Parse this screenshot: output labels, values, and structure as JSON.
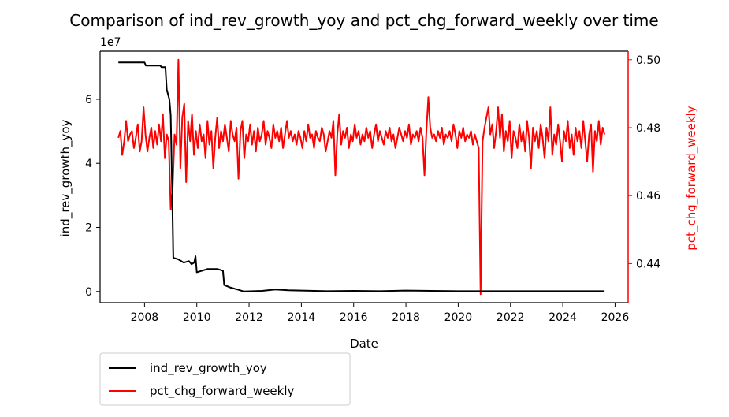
{
  "chart_data": {
    "type": "line",
    "title": "Comparison of ind_rev_growth_yoy and pct_chg_forward_weekly over time",
    "xlabel": "Date",
    "x_ticks": [
      "2008",
      "2010",
      "2012",
      "2014",
      "2016",
      "2018",
      "2020",
      "2022",
      "2024",
      "2026"
    ],
    "xlim": [
      2006.3,
      2026.5
    ],
    "left_axis": {
      "label": "ind_rev_growth_yoy",
      "offset_text": "1e7",
      "ylim": [
        -0.35,
        7.5
      ],
      "ticks": [
        "0",
        "2",
        "4",
        "6"
      ],
      "color": "#000000"
    },
    "right_axis": {
      "label": "pct_chg_forward_weekly",
      "ylim": [
        0.4285,
        0.5025
      ],
      "ticks": [
        "0.44",
        "0.46",
        "0.48",
        "0.50"
      ],
      "color": "#ff0000"
    },
    "series": [
      {
        "name": "ind_rev_growth_yoy",
        "axis": "left",
        "color": "#000000",
        "points": [
          [
            "2007.0",
            7.15
          ],
          [
            "2008.0",
            7.15
          ],
          [
            "2008.05",
            7.05
          ],
          [
            "2008.6",
            7.05
          ],
          [
            "2008.65",
            7.0
          ],
          [
            "2008.8",
            7.0
          ],
          [
            "2008.85",
            6.3
          ],
          [
            "2008.95",
            6.0
          ],
          [
            "2009.0",
            5.5
          ],
          [
            "2009.05",
            3.5
          ],
          [
            "2009.1",
            1.05
          ],
          [
            "2009.3",
            1.0
          ],
          [
            "2009.5",
            0.9
          ],
          [
            "2009.7",
            0.95
          ],
          [
            "2009.8",
            0.85
          ],
          [
            "2009.9",
            0.9
          ],
          [
            "2009.95",
            1.1
          ],
          [
            "2010.0",
            0.6
          ],
          [
            "2010.2",
            0.65
          ],
          [
            "2010.4",
            0.7
          ],
          [
            "2010.8",
            0.7
          ],
          [
            "2011.0",
            0.65
          ],
          [
            "2011.05",
            0.2
          ],
          [
            "2011.3",
            0.12
          ],
          [
            "2011.6",
            0.05
          ],
          [
            "2011.8",
            0.0
          ],
          [
            "2012.5",
            0.02
          ],
          [
            "2013.0",
            0.06
          ],
          [
            "2013.5",
            0.04
          ],
          [
            "2014.0",
            0.03
          ],
          [
            "2015.0",
            0.01
          ],
          [
            "2016.0",
            0.02
          ],
          [
            "2017.0",
            0.01
          ],
          [
            "2018.0",
            0.03
          ],
          [
            "2019.0",
            0.02
          ],
          [
            "2020.0",
            0.01
          ],
          [
            "2022.0",
            0.01
          ],
          [
            "2024.0",
            0.01
          ],
          [
            "2025.6",
            0.01
          ]
        ]
      },
      {
        "name": "pct_chg_forward_weekly",
        "axis": "right",
        "color": "#ff0000",
        "x_start": "2007.0",
        "x_end": "2025.6",
        "values": [
          0.477,
          0.479,
          0.472,
          0.476,
          0.482,
          0.476,
          0.478,
          0.479,
          0.474,
          0.477,
          0.481,
          0.473,
          0.476,
          0.486,
          0.478,
          0.473,
          0.477,
          0.48,
          0.474,
          0.479,
          0.475,
          0.481,
          0.476,
          0.484,
          0.471,
          0.478,
          0.476,
          0.456,
          0.462,
          0.478,
          0.475,
          0.5,
          0.468,
          0.483,
          0.487,
          0.464,
          0.482,
          0.476,
          0.484,
          0.472,
          0.479,
          0.474,
          0.481,
          0.476,
          0.478,
          0.471,
          0.482,
          0.475,
          0.479,
          0.468,
          0.477,
          0.483,
          0.474,
          0.479,
          0.476,
          0.481,
          0.477,
          0.473,
          0.482,
          0.478,
          0.476,
          0.48,
          0.465,
          0.479,
          0.482,
          0.471,
          0.478,
          0.476,
          0.481,
          0.475,
          0.479,
          0.473,
          0.48,
          0.476,
          0.478,
          0.482,
          0.475,
          0.479,
          0.477,
          0.474,
          0.481,
          0.477,
          0.479,
          0.476,
          0.48,
          0.474,
          0.478,
          0.482,
          0.477,
          0.479,
          0.476,
          0.478,
          0.475,
          0.479,
          0.477,
          0.474,
          0.479,
          0.476,
          0.481,
          0.477,
          0.478,
          0.474,
          0.479,
          0.477,
          0.476,
          0.48,
          0.478,
          0.473,
          0.476,
          0.479,
          0.477,
          0.482,
          0.466,
          0.478,
          0.484,
          0.475,
          0.479,
          0.477,
          0.48,
          0.474,
          0.478,
          0.476,
          0.481,
          0.477,
          0.479,
          0.475,
          0.478,
          0.476,
          0.48,
          0.477,
          0.479,
          0.474,
          0.478,
          0.481,
          0.476,
          0.479,
          0.477,
          0.475,
          0.479,
          0.477,
          0.48,
          0.476,
          0.478,
          0.474,
          0.477,
          0.48,
          0.478,
          0.476,
          0.479,
          0.477,
          0.481,
          0.475,
          0.478,
          0.477,
          0.479,
          0.476,
          0.48,
          0.477,
          0.466,
          0.479,
          0.489,
          0.48,
          0.477,
          0.478,
          0.476,
          0.479,
          0.477,
          0.48,
          0.475,
          0.478,
          0.477,
          0.479,
          0.476,
          0.481,
          0.478,
          0.474,
          0.479,
          0.477,
          0.48,
          0.476,
          0.478,
          0.477,
          0.479,
          0.475,
          0.478,
          0.476,
          0.474,
          0.431,
          0.476,
          0.48,
          0.483,
          0.486,
          0.478,
          0.481,
          0.474,
          0.479,
          0.486,
          0.477,
          0.484,
          0.473,
          0.479,
          0.476,
          0.482,
          0.471,
          0.479,
          0.477,
          0.474,
          0.481,
          0.476,
          0.479,
          0.473,
          0.482,
          0.477,
          0.468,
          0.48,
          0.476,
          0.479,
          0.474,
          0.481,
          0.477,
          0.471,
          0.48,
          0.476,
          0.486,
          0.472,
          0.478,
          0.475,
          0.481,
          0.476,
          0.47,
          0.479,
          0.476,
          0.482,
          0.474,
          0.478,
          0.472,
          0.48,
          0.476,
          0.479,
          0.474,
          0.482,
          0.476,
          0.47,
          0.478,
          0.481,
          0.467,
          0.479,
          0.476,
          0.482,
          0.475,
          0.48,
          0.478
        ]
      }
    ],
    "legend": {
      "placement": "below-left",
      "entries": [
        "ind_rev_growth_yoy",
        "pct_chg_forward_weekly"
      ]
    },
    "grid": false
  }
}
